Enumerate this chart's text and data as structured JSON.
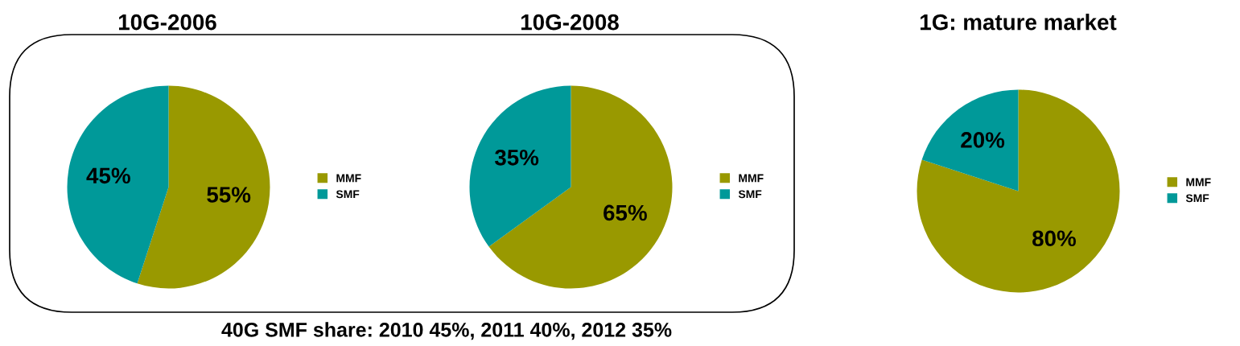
{
  "chart_data": [
    {
      "type": "pie",
      "title": "10G-2006",
      "categories": [
        "MMF",
        "SMF"
      ],
      "values": [
        55,
        45
      ],
      "value_labels": [
        "55%",
        "45%"
      ],
      "colors": [
        "#999900",
        "#009999"
      ],
      "legend": "right",
      "annotations": [
        "40G SMF share: 2010 45%, 2011 40%, 2012 35%"
      ]
    },
    {
      "type": "pie",
      "title": "10G-2008",
      "categories": [
        "MMF",
        "SMF"
      ],
      "values": [
        65,
        35
      ],
      "value_labels": [
        "65%",
        "35%"
      ],
      "colors": [
        "#999900",
        "#009999"
      ],
      "legend": "right"
    },
    {
      "type": "pie",
      "title": "1G: mature market",
      "categories": [
        "MMF",
        "SMF"
      ],
      "values": [
        80,
        20
      ],
      "value_labels": [
        "80%",
        "20%"
      ],
      "colors": [
        "#999900",
        "#009999"
      ],
      "legend": "right"
    }
  ]
}
